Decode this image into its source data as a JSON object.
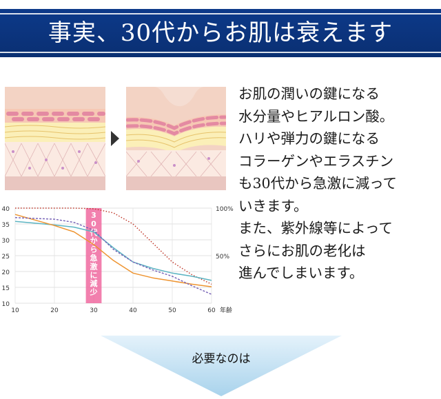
{
  "banner": {
    "title": "事実、30代からお肌は衰えます"
  },
  "description": {
    "lines": [
      "お肌の潤いの鍵になる",
      "水分量やヒアルロン酸。",
      "ハリや弾力の鍵になる",
      "コラーゲンやエラスチン",
      "も30代から急激に減って",
      "いきます。",
      "また、紫外線等によって",
      "さらにお肌の老化は",
      "進んでしまいます。"
    ]
  },
  "skin_illustrations": {
    "arrow_icon": "triangle-right-icon"
  },
  "chart_data": {
    "type": "line",
    "x": [
      10,
      20,
      30,
      40,
      50,
      60
    ],
    "xticks": [
      "10",
      "20",
      "30",
      "40",
      "50",
      "60"
    ],
    "x_unit": "年齢",
    "yticks_left": [
      "40",
      "35",
      "30",
      "25",
      "20",
      "15",
      "10"
    ],
    "yticks_right": [
      "100%",
      "50%"
    ],
    "ylim": [
      10,
      40
    ],
    "highlight": {
      "range": [
        28,
        32
      ],
      "label": "30代から急激に減少",
      "color": "#f06aa0"
    },
    "series": [
      {
        "style": "dotted",
        "color": "#c0392b",
        "x": [
          10,
          20,
          25,
          30,
          35,
          40,
          45,
          50,
          55,
          60
        ],
        "y": [
          40,
          40,
          40,
          39.8,
          38.5,
          35,
          29,
          23,
          19,
          16
        ]
      },
      {
        "style": "solid",
        "color": "#5bb4c2",
        "x": [
          10,
          20,
          25,
          30,
          35,
          40,
          45,
          50,
          55,
          60
        ],
        "y": [
          35.8,
          34.7,
          34,
          32.5,
          27.5,
          23,
          21,
          19.5,
          18.5,
          17.2
        ]
      },
      {
        "style": "solid",
        "color": "#ee9430",
        "x": [
          10,
          20,
          25,
          30,
          35,
          40,
          45,
          50,
          55,
          60
        ],
        "y": [
          38,
          34.5,
          32.5,
          28.5,
          23.5,
          19.5,
          18,
          17,
          16,
          15.2
        ]
      },
      {
        "style": "dashed",
        "color": "#7a66b8",
        "x": [
          10,
          20,
          25,
          30,
          35,
          40,
          45,
          50,
          55,
          60
        ],
        "y": [
          37,
          36.5,
          35.5,
          33,
          27,
          23,
          20.5,
          18.5,
          15.5,
          12.8
        ]
      }
    ]
  },
  "next": {
    "label": "必要なのは"
  },
  "colors": {
    "banner": "#0d3a8a",
    "down_arrow": "#bfe0f2",
    "highlight": "#f06aa0"
  }
}
